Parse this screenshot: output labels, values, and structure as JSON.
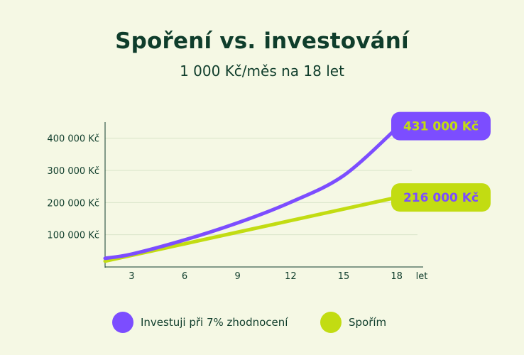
{
  "title": "Spoření vs. investování",
  "subtitle": "1 000 Kč/měs na 18 let",
  "colors": {
    "invest": "#7c4dff",
    "save": "#c2dc12",
    "text": "#0f3d2b",
    "background": "#f5f8e4",
    "grid": "#d8e3c8"
  },
  "chart_data": {
    "type": "line",
    "title": "Spoření vs. investování",
    "subtitle": "1 000 Kč/měs na 18 let",
    "xlabel": "let",
    "ylabel": "",
    "x_ticks": [
      "3",
      "6",
      "9",
      "12",
      "15",
      "18"
    ],
    "y_ticks": [
      "100 000 Kč",
      "200 000 Kč",
      "300 000 Kč",
      "400 000 Kč"
    ],
    "xlim": [
      1.5,
      19.5
    ],
    "ylim": [
      0,
      450000
    ],
    "grid": true,
    "legend_position": "bottom",
    "series": [
      {
        "name": "Investuji při 7% zhodnocení",
        "color": "#7c4dff",
        "end_label": "431 000 Kč",
        "x": [
          1.5,
          3,
          6,
          9,
          12,
          15,
          18
        ],
        "y": [
          27000,
          40000,
          84000,
          137000,
          201000,
          284000,
          431000
        ]
      },
      {
        "name": "Spořím",
        "color": "#c2dc12",
        "end_label": "216 000 Kč",
        "x": [
          1.5,
          3,
          6,
          9,
          12,
          15,
          18
        ],
        "y": [
          18000,
          36000,
          72000,
          108000,
          144000,
          180000,
          216000
        ]
      }
    ]
  },
  "legend": [
    {
      "label": "Investuji při 7% zhodnocení",
      "color": "#7c4dff"
    },
    {
      "label": "Spořím",
      "color": "#c2dc12"
    }
  ]
}
